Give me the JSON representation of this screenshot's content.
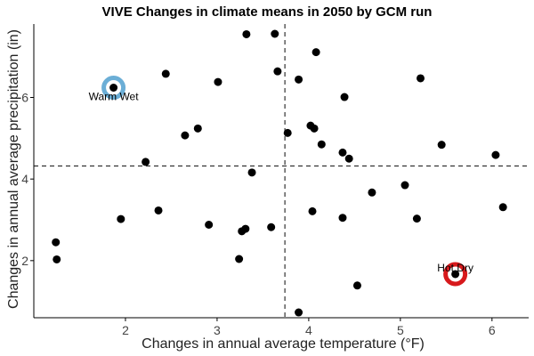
{
  "chart_data": {
    "type": "scatter",
    "title": "VIVE Changes in climate means in 2050 by GCM run",
    "xlabel": "Changes in annual average temperature (°F)",
    "ylabel": "Changes in annual average precipitation (in)",
    "xlim": [
      1.0,
      6.4
    ],
    "ylim": [
      0.6,
      7.8
    ],
    "x_ticks": [
      2,
      3,
      4,
      5,
      6
    ],
    "y_ticks": [
      2,
      4,
      6
    ],
    "grid": false,
    "reference_lines": {
      "x": 3.74,
      "y": 4.32
    },
    "point_color": "#000000",
    "points": [
      {
        "x": 1.24,
        "y": 2.45
      },
      {
        "x": 1.25,
        "y": 2.03
      },
      {
        "x": 1.87,
        "y": 6.24
      },
      {
        "x": 1.95,
        "y": 3.02
      },
      {
        "x": 2.22,
        "y": 4.42
      },
      {
        "x": 2.36,
        "y": 3.23
      },
      {
        "x": 2.44,
        "y": 6.58
      },
      {
        "x": 2.65,
        "y": 5.07
      },
      {
        "x": 2.79,
        "y": 5.24
      },
      {
        "x": 2.91,
        "y": 2.88
      },
      {
        "x": 3.01,
        "y": 6.38
      },
      {
        "x": 3.24,
        "y": 2.04
      },
      {
        "x": 3.27,
        "y": 2.72
      },
      {
        "x": 3.31,
        "y": 2.78
      },
      {
        "x": 3.32,
        "y": 7.55
      },
      {
        "x": 3.38,
        "y": 4.16
      },
      {
        "x": 3.59,
        "y": 2.82
      },
      {
        "x": 3.63,
        "y": 7.56
      },
      {
        "x": 3.66,
        "y": 6.64
      },
      {
        "x": 3.77,
        "y": 5.13
      },
      {
        "x": 3.89,
        "y": 0.73
      },
      {
        "x": 3.89,
        "y": 6.44
      },
      {
        "x": 4.02,
        "y": 5.31
      },
      {
        "x": 4.04,
        "y": 3.21
      },
      {
        "x": 4.06,
        "y": 5.24
      },
      {
        "x": 4.08,
        "y": 7.11
      },
      {
        "x": 4.14,
        "y": 4.85
      },
      {
        "x": 4.37,
        "y": 3.05
      },
      {
        "x": 4.37,
        "y": 4.65
      },
      {
        "x": 4.39,
        "y": 6.01
      },
      {
        "x": 4.44,
        "y": 4.5
      },
      {
        "x": 4.53,
        "y": 1.39
      },
      {
        "x": 4.69,
        "y": 3.67
      },
      {
        "x": 5.05,
        "y": 3.85
      },
      {
        "x": 5.18,
        "y": 3.03
      },
      {
        "x": 5.22,
        "y": 6.47
      },
      {
        "x": 5.45,
        "y": 4.84
      },
      {
        "x": 5.6,
        "y": 1.67
      },
      {
        "x": 6.04,
        "y": 4.59
      },
      {
        "x": 6.12,
        "y": 3.31
      }
    ],
    "highlights": [
      {
        "label": "Warm Wet",
        "x": 1.87,
        "y": 6.24,
        "color": "#6baed6"
      },
      {
        "label": "Hot Dry",
        "x": 5.6,
        "y": 1.67,
        "color": "#d7191c"
      }
    ]
  }
}
